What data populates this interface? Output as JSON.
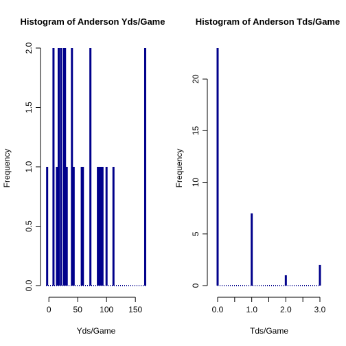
{
  "chart_data": [
    {
      "type": "bar",
      "title": "Histogram of Anderson Yds/Game",
      "xlabel": "Yds/Game",
      "ylabel": "Frequency",
      "xlim": [
        -5,
        170
      ],
      "ylim": [
        0,
        2
      ],
      "xticks": [
        "0",
        "50",
        "100",
        "150"
      ],
      "yticks": [
        "0.0",
        "0.5",
        "1.0",
        "1.5",
        "2.0"
      ],
      "color": "#00008B",
      "values": [
        {
          "x": -3,
          "y": 1
        },
        {
          "x": 8,
          "y": 2
        },
        {
          "x": 14,
          "y": 1
        },
        {
          "x": 17,
          "y": 2
        },
        {
          "x": 21,
          "y": 2
        },
        {
          "x": 26,
          "y": 2
        },
        {
          "x": 28,
          "y": 2
        },
        {
          "x": 31,
          "y": 1
        },
        {
          "x": 40,
          "y": 2
        },
        {
          "x": 43,
          "y": 1
        },
        {
          "x": 57,
          "y": 1
        },
        {
          "x": 59,
          "y": 1
        },
        {
          "x": 72,
          "y": 2
        },
        {
          "x": 85,
          "y": 1
        },
        {
          "x": 87,
          "y": 1
        },
        {
          "x": 89,
          "y": 1
        },
        {
          "x": 91,
          "y": 1
        },
        {
          "x": 93,
          "y": 1
        },
        {
          "x": 100,
          "y": 1
        },
        {
          "x": 112,
          "y": 1
        },
        {
          "x": 167,
          "y": 2
        }
      ]
    },
    {
      "type": "bar",
      "title": "Histogram of Anderson Tds/Game",
      "xlabel": "Tds/Game",
      "ylabel": "Frequency",
      "xlim": [
        0,
        3
      ],
      "ylim": [
        0,
        23
      ],
      "xticks": [
        "0.0",
        "1.0",
        "2.0",
        "3.0"
      ],
      "yticks": [
        "0",
        "5",
        "10",
        "15",
        "20"
      ],
      "color": "#00008B",
      "values": [
        {
          "x": 0,
          "y": 23
        },
        {
          "x": 1,
          "y": 7
        },
        {
          "x": 2,
          "y": 1
        },
        {
          "x": 3,
          "y": 2
        }
      ]
    }
  ]
}
